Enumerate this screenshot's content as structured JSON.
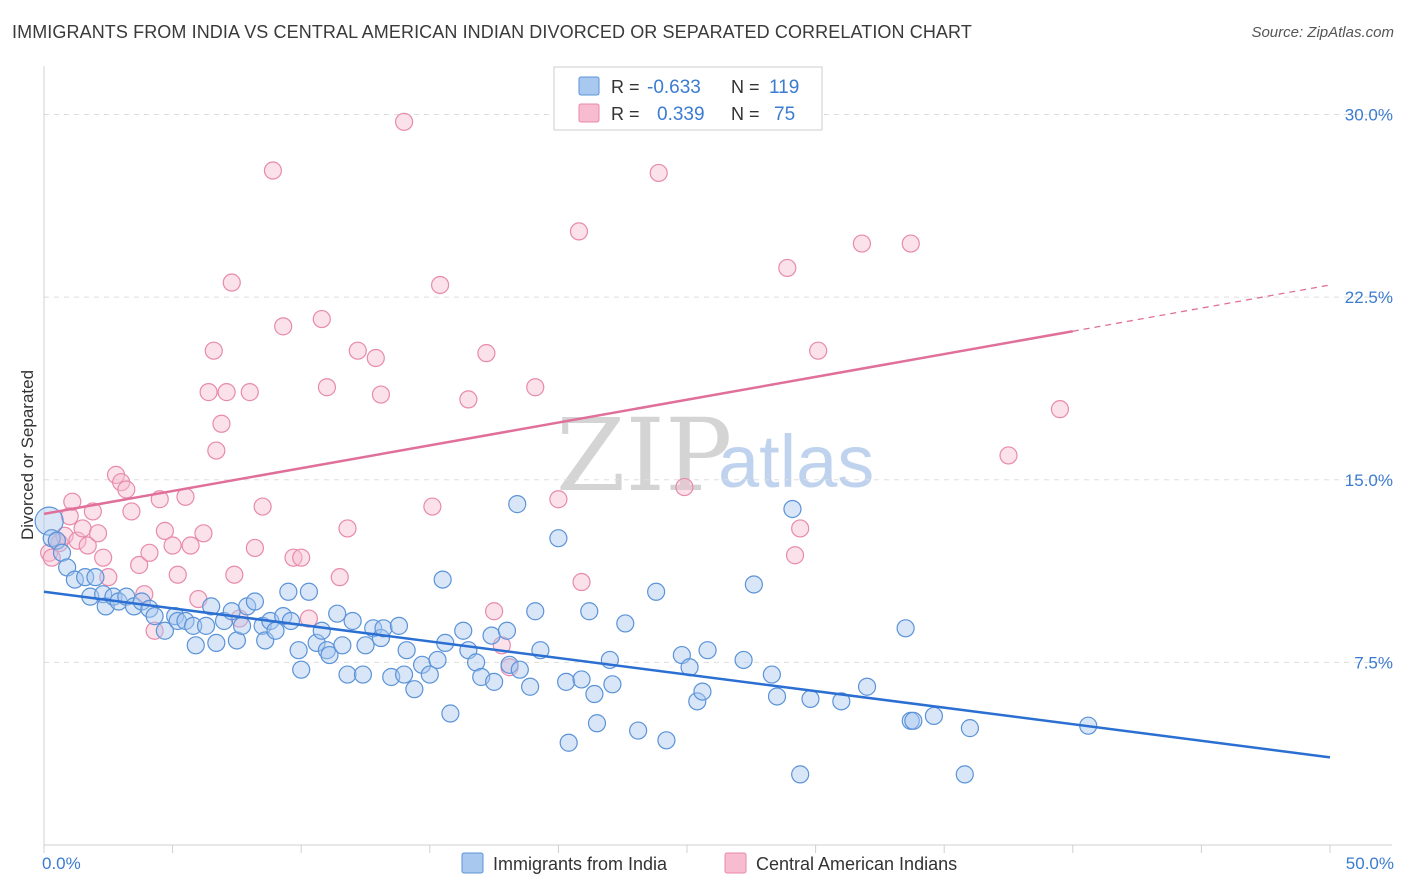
{
  "header": {
    "title": "IMMIGRANTS FROM INDIA VS CENTRAL AMERICAN INDIAN DIVORCED OR SEPARATED CORRELATION CHART",
    "source": "Source: ZipAtlas.com"
  },
  "watermark": {
    "zip": "ZIP",
    "atlas": "atlas"
  },
  "colors": {
    "blue_fill": "#a9c8f0",
    "blue_stroke": "#5b93d8",
    "blue_line": "#2a6fd1",
    "pink_fill": "#f7bcd0",
    "pink_stroke": "#e88aab",
    "pink_line": "#e0709a",
    "grid": "#dddddd",
    "axis_text": "#3b7bd0"
  },
  "legend": {
    "rows": [
      {
        "r_label": "R =",
        "r_value": "-0.633",
        "n_label": "N =",
        "n_value": "119",
        "series": "blue"
      },
      {
        "r_label": "R =",
        "r_value": "0.339",
        "n_label": "N =",
        "n_value": "75",
        "series": "pink"
      }
    ]
  },
  "chart_data": {
    "type": "scatter",
    "title": "IMMIGRANTS FROM INDIA VS CENTRAL AMERICAN INDIAN DIVORCED OR SEPARATED CORRELATION CHART",
    "xlabel": "",
    "ylabel": "Divorced or Separated",
    "xlim": [
      0,
      50
    ],
    "ylim": [
      0,
      31.5
    ],
    "x_tick_labels": [
      "0.0%",
      "50.0%"
    ],
    "y_ticks": [
      7.5,
      15.0,
      22.5,
      30.0
    ],
    "y_tick_labels": [
      "7.5%",
      "15.0%",
      "22.5%",
      "30.0%"
    ],
    "grid": true,
    "legend_position": "top-center",
    "series": [
      {
        "name": "Immigrants from India",
        "color": "blue",
        "r": -0.633,
        "n": 119,
        "trend": {
          "x0": 0,
          "y0": 10.4,
          "x1": 50,
          "y1": 3.6
        },
        "points": [
          [
            0.2,
            13.3
          ],
          [
            0.3,
            12.6
          ],
          [
            0.5,
            12.5
          ],
          [
            0.7,
            12.0
          ],
          [
            0.9,
            11.4
          ],
          [
            1.2,
            10.9
          ],
          [
            1.6,
            11.0
          ],
          [
            1.8,
            10.2
          ],
          [
            2.0,
            11.0
          ],
          [
            2.3,
            10.3
          ],
          [
            2.4,
            9.8
          ],
          [
            2.7,
            10.2
          ],
          [
            2.9,
            10.0
          ],
          [
            3.2,
            10.2
          ],
          [
            3.5,
            9.8
          ],
          [
            3.8,
            10.0
          ],
          [
            4.1,
            9.7
          ],
          [
            4.3,
            9.4
          ],
          [
            4.7,
            8.8
          ],
          [
            5.1,
            9.4
          ],
          [
            5.2,
            9.2
          ],
          [
            5.5,
            9.2
          ],
          [
            5.8,
            9.0
          ],
          [
            5.9,
            8.2
          ],
          [
            6.3,
            9.0
          ],
          [
            6.5,
            9.8
          ],
          [
            6.7,
            8.3
          ],
          [
            7.0,
            9.2
          ],
          [
            7.3,
            9.6
          ],
          [
            7.5,
            8.4
          ],
          [
            7.7,
            9.0
          ],
          [
            7.9,
            9.8
          ],
          [
            8.2,
            10.0
          ],
          [
            8.5,
            9.0
          ],
          [
            8.6,
            8.4
          ],
          [
            8.8,
            9.2
          ],
          [
            9.0,
            8.8
          ],
          [
            9.3,
            9.4
          ],
          [
            9.5,
            10.4
          ],
          [
            9.6,
            9.2
          ],
          [
            9.9,
            8.0
          ],
          [
            10.0,
            7.2
          ],
          [
            10.3,
            10.4
          ],
          [
            10.6,
            8.3
          ],
          [
            10.8,
            8.8
          ],
          [
            11.0,
            8.0
          ],
          [
            11.1,
            7.8
          ],
          [
            11.4,
            9.5
          ],
          [
            11.6,
            8.2
          ],
          [
            11.8,
            7.0
          ],
          [
            12.0,
            9.2
          ],
          [
            12.4,
            7.0
          ],
          [
            12.5,
            8.2
          ],
          [
            12.8,
            8.9
          ],
          [
            13.1,
            8.5
          ],
          [
            13.2,
            8.9
          ],
          [
            13.5,
            6.9
          ],
          [
            13.8,
            9.0
          ],
          [
            14.0,
            7.0
          ],
          [
            14.1,
            8.0
          ],
          [
            14.4,
            6.4
          ],
          [
            14.7,
            7.4
          ],
          [
            15.0,
            7.0
          ],
          [
            15.3,
            7.6
          ],
          [
            15.5,
            10.9
          ],
          [
            15.6,
            8.3
          ],
          [
            15.8,
            5.4
          ],
          [
            16.3,
            8.8
          ],
          [
            16.5,
            8.0
          ],
          [
            16.8,
            7.5
          ],
          [
            17.0,
            6.9
          ],
          [
            17.4,
            8.6
          ],
          [
            17.5,
            6.7
          ],
          [
            18.0,
            8.8
          ],
          [
            18.1,
            7.4
          ],
          [
            18.4,
            14.0
          ],
          [
            18.5,
            7.2
          ],
          [
            18.9,
            6.5
          ],
          [
            19.1,
            9.6
          ],
          [
            19.3,
            8.0
          ],
          [
            20.0,
            12.6
          ],
          [
            20.3,
            6.7
          ],
          [
            20.4,
            4.2
          ],
          [
            20.9,
            6.8
          ],
          [
            21.2,
            9.6
          ],
          [
            21.4,
            6.2
          ],
          [
            21.5,
            5.0
          ],
          [
            22.0,
            7.6
          ],
          [
            22.1,
            6.6
          ],
          [
            22.6,
            9.1
          ],
          [
            23.1,
            4.7
          ],
          [
            23.8,
            10.4
          ],
          [
            24.2,
            4.3
          ],
          [
            24.8,
            7.8
          ],
          [
            25.1,
            7.3
          ],
          [
            25.4,
            5.9
          ],
          [
            25.6,
            6.3
          ],
          [
            25.8,
            8.0
          ],
          [
            27.2,
            7.6
          ],
          [
            27.6,
            10.7
          ],
          [
            28.3,
            7.0
          ],
          [
            28.5,
            6.1
          ],
          [
            29.1,
            13.8
          ],
          [
            29.4,
            2.9
          ],
          [
            29.8,
            6.0
          ],
          [
            31.0,
            5.9
          ],
          [
            32.0,
            6.5
          ],
          [
            33.5,
            8.9
          ],
          [
            33.7,
            5.1
          ],
          [
            33.8,
            5.1
          ],
          [
            34.6,
            5.3
          ],
          [
            35.8,
            2.9
          ],
          [
            36.0,
            4.8
          ],
          [
            40.6,
            4.9
          ]
        ]
      },
      {
        "name": "Central American Indians",
        "color": "pink",
        "r": 0.339,
        "n": 75,
        "trend": {
          "x0": 0,
          "y0": 13.6,
          "x1": 40,
          "y1": 21.1,
          "dashed_to_x": 50,
          "dashed_to_y": 23.0
        },
        "points": [
          [
            0.2,
            12.0
          ],
          [
            0.3,
            11.8
          ],
          [
            0.5,
            12.5
          ],
          [
            0.6,
            12.4
          ],
          [
            0.8,
            12.7
          ],
          [
            1.0,
            13.5
          ],
          [
            1.1,
            14.1
          ],
          [
            1.3,
            12.5
          ],
          [
            1.5,
            13.0
          ],
          [
            1.7,
            12.3
          ],
          [
            1.9,
            13.7
          ],
          [
            2.1,
            12.8
          ],
          [
            2.3,
            11.8
          ],
          [
            2.5,
            11.0
          ],
          [
            2.8,
            15.2
          ],
          [
            3.0,
            14.9
          ],
          [
            3.2,
            14.6
          ],
          [
            3.4,
            13.7
          ],
          [
            3.7,
            11.5
          ],
          [
            3.9,
            10.3
          ],
          [
            4.1,
            12.0
          ],
          [
            4.3,
            8.8
          ],
          [
            4.5,
            14.2
          ],
          [
            4.7,
            12.9
          ],
          [
            5.0,
            12.3
          ],
          [
            5.2,
            11.1
          ],
          [
            5.5,
            14.3
          ],
          [
            5.7,
            12.3
          ],
          [
            6.0,
            10.1
          ],
          [
            6.2,
            12.8
          ],
          [
            6.4,
            18.6
          ],
          [
            6.6,
            20.3
          ],
          [
            6.7,
            16.2
          ],
          [
            6.9,
            17.3
          ],
          [
            7.1,
            18.6
          ],
          [
            7.3,
            23.1
          ],
          [
            7.4,
            11.1
          ],
          [
            7.6,
            9.3
          ],
          [
            8.0,
            18.6
          ],
          [
            8.2,
            12.2
          ],
          [
            8.5,
            13.9
          ],
          [
            8.9,
            27.7
          ],
          [
            9.3,
            21.3
          ],
          [
            9.7,
            11.8
          ],
          [
            10.0,
            11.8
          ],
          [
            10.3,
            9.3
          ],
          [
            10.8,
            21.6
          ],
          [
            11.0,
            18.8
          ],
          [
            11.5,
            11.0
          ],
          [
            11.8,
            13.0
          ],
          [
            12.2,
            20.3
          ],
          [
            12.9,
            20.0
          ],
          [
            13.1,
            18.5
          ],
          [
            14.0,
            29.7
          ],
          [
            15.1,
            13.9
          ],
          [
            15.4,
            23.0
          ],
          [
            16.5,
            18.3
          ],
          [
            17.2,
            20.2
          ],
          [
            17.5,
            9.6
          ],
          [
            17.8,
            8.2
          ],
          [
            18.1,
            7.3
          ],
          [
            19.1,
            18.8
          ],
          [
            20.0,
            14.2
          ],
          [
            20.8,
            25.2
          ],
          [
            20.9,
            10.8
          ],
          [
            23.9,
            27.6
          ],
          [
            24.9,
            14.7
          ],
          [
            28.9,
            23.7
          ],
          [
            29.2,
            11.9
          ],
          [
            29.4,
            13.0
          ],
          [
            30.1,
            20.3
          ],
          [
            31.8,
            24.7
          ],
          [
            33.7,
            24.7
          ],
          [
            37.5,
            16.0
          ],
          [
            39.5,
            17.9
          ]
        ]
      }
    ]
  },
  "bottom_legend": {
    "items": [
      {
        "label": "Immigrants from India",
        "series": "blue"
      },
      {
        "label": "Central American Indians",
        "series": "pink"
      }
    ]
  }
}
